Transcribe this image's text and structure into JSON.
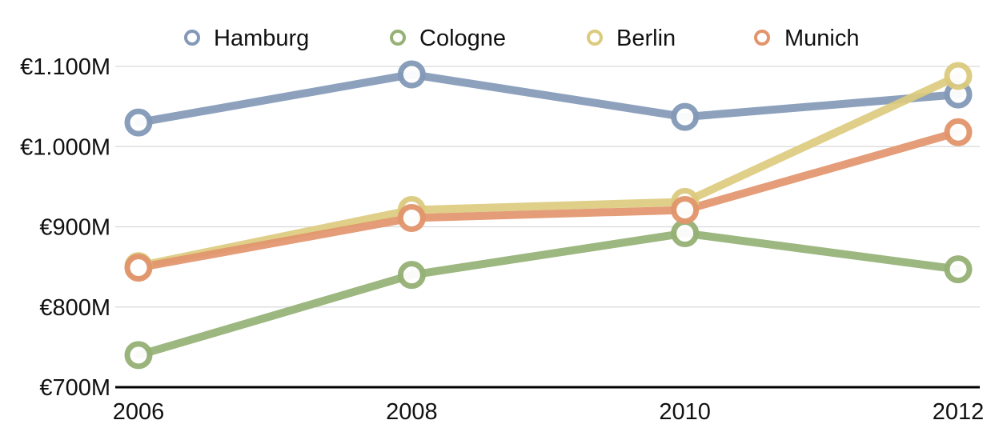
{
  "chart_data": {
    "type": "line",
    "title": "",
    "xlabel": "",
    "ylabel": "",
    "x": [
      "2006",
      "2008",
      "2010",
      "2012"
    ],
    "ylim": [
      700,
      1100
    ],
    "yticks": [
      {
        "value": 700,
        "label": "€700M"
      },
      {
        "value": 800,
        "label": "€800M"
      },
      {
        "value": 900,
        "label": "€900M"
      },
      {
        "value": 1000,
        "label": "€1.000M"
      },
      {
        "value": 1100,
        "label": "€1.100M"
      }
    ],
    "grid": true,
    "legend_position": "top",
    "series": [
      {
        "name": "Hamburg",
        "color": "#8399b7",
        "values": [
          1030,
          1090,
          1037,
          1065
        ]
      },
      {
        "name": "Cologne",
        "color": "#95b175",
        "values": [
          740,
          840,
          892,
          847
        ]
      },
      {
        "name": "Berlin",
        "color": "#dccb7e",
        "values": [
          851,
          921,
          931,
          1088
        ]
      },
      {
        "name": "Munich",
        "color": "#e2956c",
        "values": [
          849,
          911,
          921,
          1018
        ]
      }
    ]
  }
}
